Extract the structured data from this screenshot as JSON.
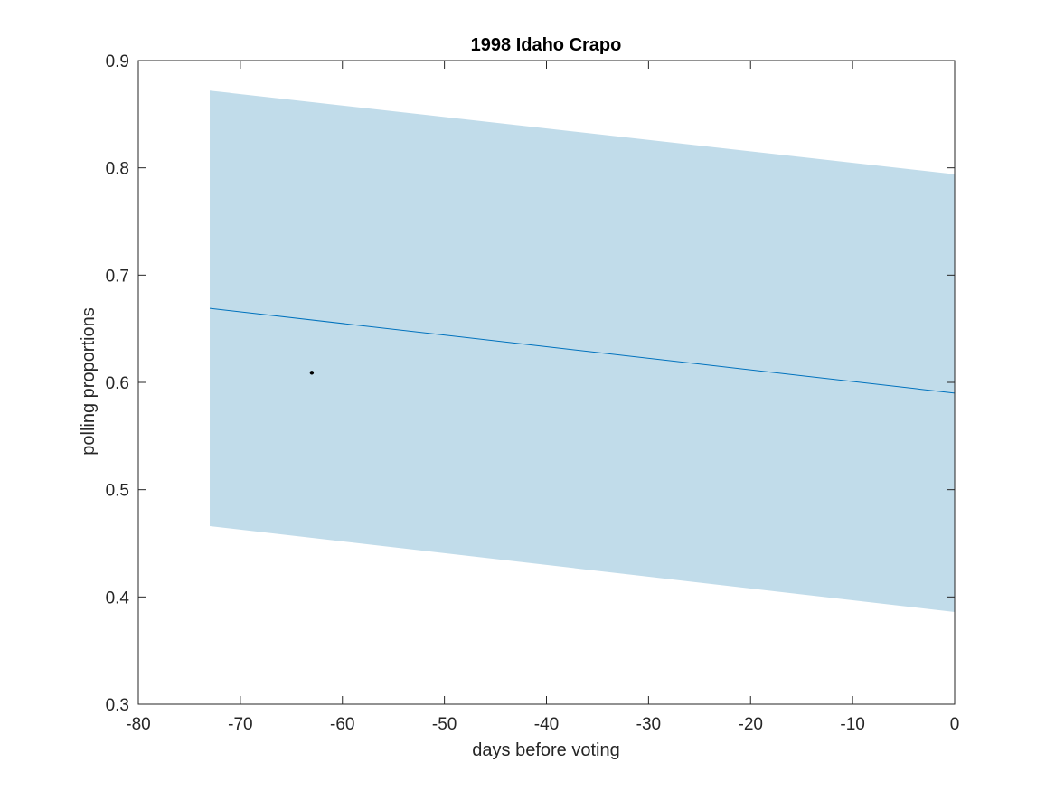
{
  "chart_data": {
    "type": "line",
    "title": "1998 Idaho Crapo",
    "xlabel": "days before voting",
    "ylabel": "polling proportions",
    "xlim": [
      -80,
      0
    ],
    "ylim": [
      0.3,
      0.9
    ],
    "xticks": [
      -80,
      -70,
      -60,
      -50,
      -40,
      -30,
      -20,
      -10,
      0
    ],
    "yticks": [
      0.3,
      0.4,
      0.5,
      0.6,
      0.7,
      0.8,
      0.9
    ],
    "xtick_labels": [
      "-80",
      "-70",
      "-60",
      "-50",
      "-40",
      "-30",
      "-20",
      "-10",
      "0"
    ],
    "ytick_labels": [
      "0.3",
      "0.4",
      "0.5",
      "0.6",
      "0.7",
      "0.8",
      "0.9"
    ],
    "grid": false,
    "band": {
      "x": [
        -73,
        0
      ],
      "upper": [
        0.872,
        0.794
      ],
      "lower": [
        0.466,
        0.386
      ],
      "color": "#c1dcea"
    },
    "line": {
      "x": [
        -73,
        0
      ],
      "y": [
        0.669,
        0.59
      ],
      "color": "#0072bd"
    },
    "points": [
      {
        "x": -63,
        "y": 0.609
      }
    ],
    "point_color": "#000000"
  }
}
